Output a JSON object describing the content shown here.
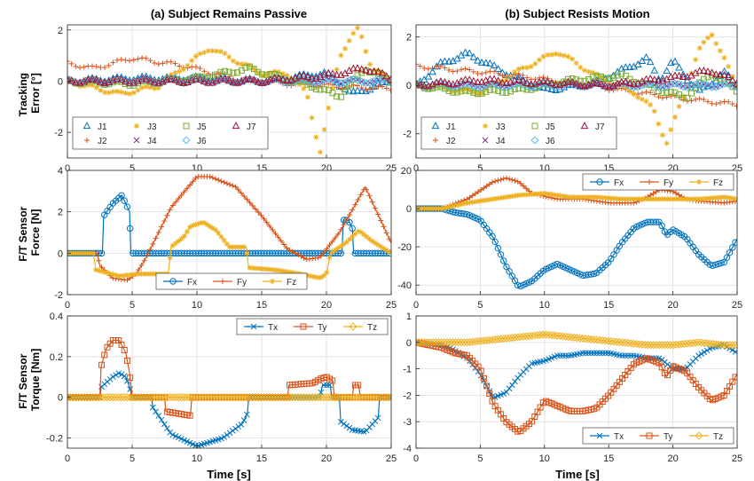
{
  "figure": {
    "col_titles": [
      "(a) Subject Remains Passive",
      "(b) Subject Resists Motion"
    ],
    "row_ylabels": [
      [
        "Tracking",
        "Error [°]"
      ],
      [
        "F/T Sensor",
        "Force [N]"
      ],
      [
        "F/T Sensor",
        "Torque [Nm]"
      ]
    ],
    "xlabel": "Time [s]"
  },
  "colors": {
    "J1": "#0072BD",
    "J2": "#D95319",
    "J3": "#EDB120",
    "J4": "#7E2F8E",
    "J5": "#77AC30",
    "J6": "#4DBEEE",
    "J7": "#A2142F",
    "Fx": "#0072BD",
    "Fy": "#D95319",
    "Fz": "#EDB120",
    "Tx": "#0072BD",
    "Ty": "#D95319",
    "Tz": "#EDB120"
  },
  "chart_data": [
    {
      "type": "scatter",
      "id": "a-err",
      "xlim": [
        0,
        25
      ],
      "ylim": [
        -3,
        2.2
      ],
      "xticks": [
        0,
        5,
        10,
        15,
        20,
        25
      ],
      "yticks": [
        -2,
        0,
        2
      ],
      "grid": true,
      "legend": "bottom-left, 4 columns",
      "series": [
        {
          "name": "J1",
          "marker": "triangle",
          "x": [
            0,
            5,
            10,
            15,
            20,
            22,
            25
          ],
          "y": [
            0,
            0.1,
            0.1,
            0,
            0.3,
            -0.5,
            0
          ]
        },
        {
          "name": "J2",
          "marker": "plus",
          "x": [
            0,
            2,
            5,
            9,
            13,
            17,
            21,
            25
          ],
          "y": [
            0.7,
            0.5,
            0.9,
            0.6,
            0.1,
            -0.1,
            -0.2,
            -0.3
          ]
        },
        {
          "name": "J3",
          "marker": "star",
          "x": [
            0,
            4,
            7,
            11,
            15,
            17,
            18.5,
            19.5,
            21,
            22.5,
            23.5,
            25
          ],
          "y": [
            0,
            -0.5,
            -0.2,
            1.3,
            0.3,
            0.3,
            -0.5,
            -2.8,
            1.0,
            2.1,
            0.5,
            0
          ]
        },
        {
          "name": "J4",
          "marker": "x",
          "x": [
            0,
            5,
            10,
            15,
            20,
            25
          ],
          "y": [
            0,
            0,
            0,
            0,
            0,
            0
          ]
        },
        {
          "name": "J5",
          "marker": "square",
          "x": [
            0,
            5,
            10,
            14,
            16,
            19,
            21,
            23,
            25
          ],
          "y": [
            0,
            -0.1,
            0.1,
            0.5,
            0.2,
            -0.2,
            -0.6,
            0.5,
            0
          ]
        },
        {
          "name": "J6",
          "marker": "diamond",
          "x": [
            0,
            5,
            10,
            15,
            20,
            25
          ],
          "y": [
            0,
            0,
            0,
            0,
            0,
            0
          ]
        },
        {
          "name": "J7",
          "marker": "triangle",
          "x": [
            0,
            5,
            10,
            15,
            20,
            23,
            25
          ],
          "y": [
            0,
            0,
            0,
            0,
            0.2,
            0.5,
            0.1
          ]
        }
      ]
    },
    {
      "type": "scatter",
      "id": "b-err",
      "xlim": [
        0,
        25
      ],
      "ylim": [
        -3,
        2.5
      ],
      "xticks": [
        0,
        5,
        10,
        15,
        20,
        25
      ],
      "yticks": [
        -2,
        0,
        2
      ],
      "grid": true,
      "legend": "bottom-left, 4 columns",
      "series": [
        {
          "name": "J1",
          "marker": "triangle",
          "x": [
            0,
            2,
            4,
            7,
            10,
            14,
            18,
            19,
            20,
            22,
            24,
            25
          ],
          "y": [
            0,
            0.9,
            1.3,
            0.5,
            -0.2,
            0.1,
            1.1,
            0.2,
            1.0,
            -0.3,
            0.5,
            0
          ]
        },
        {
          "name": "J2",
          "marker": "plus",
          "x": [
            0,
            4,
            8,
            12,
            16,
            20,
            25
          ],
          "y": [
            0.8,
            0.6,
            0.4,
            0.1,
            -0.2,
            -0.5,
            -0.8
          ]
        },
        {
          "name": "J3",
          "marker": "star",
          "x": [
            0,
            5,
            8,
            11,
            14,
            17,
            18.5,
            19.5,
            22,
            23,
            24.5,
            25
          ],
          "y": [
            0,
            -0.3,
            0.6,
            1.4,
            0.4,
            -0.3,
            -1.0,
            -2.4,
            1.4,
            2.2,
            0.5,
            0
          ]
        },
        {
          "name": "J4",
          "marker": "x",
          "x": [
            0,
            5,
            10,
            15,
            20,
            25
          ],
          "y": [
            0,
            0,
            0,
            0,
            0,
            0
          ]
        },
        {
          "name": "J5",
          "marker": "square",
          "x": [
            0,
            4,
            8,
            12,
            16,
            19,
            21,
            23,
            25
          ],
          "y": [
            0,
            -0.3,
            -0.2,
            0.2,
            0.4,
            -0.2,
            -0.5,
            0.5,
            -0.2
          ]
        },
        {
          "name": "J6",
          "marker": "diamond",
          "x": [
            0,
            5,
            10,
            15,
            20,
            25
          ],
          "y": [
            0,
            0,
            0,
            0,
            0,
            0
          ]
        },
        {
          "name": "J7",
          "marker": "triangle",
          "x": [
            0,
            5,
            10,
            15,
            20,
            23,
            25
          ],
          "y": [
            0,
            0.2,
            0.1,
            0,
            0.3,
            0.6,
            0.1
          ]
        }
      ]
    },
    {
      "type": "line",
      "id": "a-force",
      "xlim": [
        0,
        25
      ],
      "ylim": [
        -2,
        4
      ],
      "xticks": [
        0,
        5,
        10,
        15,
        20,
        25
      ],
      "yticks": [
        -2,
        0,
        2,
        4
      ],
      "grid": true,
      "legend": "bottom-center, horizontal",
      "series": [
        {
          "name": "Fx",
          "marker": "circle",
          "x": [
            0,
            2.7,
            2.8,
            3.5,
            4.2,
            4.8,
            4.9,
            5.0,
            21.2,
            21.3,
            21.7,
            22.0,
            22.1,
            25
          ],
          "y": [
            0,
            0,
            1.8,
            2.4,
            2.8,
            2.0,
            0,
            0,
            0,
            1.6,
            1.6,
            1.2,
            0,
            0
          ]
        },
        {
          "name": "Fy",
          "marker": "plus",
          "x": [
            0,
            2.3,
            2.5,
            3.5,
            4.6,
            5.3,
            6,
            8,
            10,
            11,
            13,
            15,
            17,
            18.5,
            19.5,
            21,
            23,
            25
          ],
          "y": [
            0,
            0,
            -0.6,
            -1.2,
            -1.3,
            -1.0,
            -0.3,
            2.2,
            3.7,
            3.7,
            3.2,
            1.8,
            0.2,
            -0.3,
            -0.2,
            1.0,
            3.2,
            0.5
          ]
        },
        {
          "name": "Fz",
          "marker": "star",
          "x": [
            0,
            2.0,
            2.2,
            4,
            5.5,
            7,
            7.8,
            8,
            9,
            9.5,
            10.5,
            11.5,
            12.5,
            13.8,
            14.0,
            16,
            18,
            19.5,
            20,
            20.3,
            21.5,
            22.5,
            23.5,
            25
          ],
          "y": [
            0,
            0,
            -0.8,
            -1.1,
            -1.0,
            -1.0,
            -1.0,
            0.3,
            0.8,
            1.3,
            1.5,
            1.1,
            0.3,
            0.3,
            -0.7,
            -0.8,
            -1.0,
            -1.2,
            -1.0,
            0,
            0.5,
            1.1,
            0.6,
            0
          ]
        }
      ]
    },
    {
      "type": "line",
      "id": "b-force",
      "xlim": [
        0,
        25
      ],
      "ylim": [
        -45,
        20
      ],
      "xticks": [
        0,
        5,
        10,
        15,
        20,
        25
      ],
      "yticks": [
        -40,
        -20,
        0,
        20
      ],
      "grid": true,
      "legend": "top-right, horizontal",
      "series": [
        {
          "name": "Fx",
          "marker": "circle",
          "x": [
            0,
            2,
            3,
            4,
            5,
            6,
            7,
            8,
            9,
            10,
            11,
            12,
            13,
            14,
            15,
            16,
            17,
            18,
            19,
            19.5,
            20,
            21,
            22,
            23,
            24,
            25
          ],
          "y": [
            0,
            0,
            -2,
            -3,
            -6,
            -15,
            -30,
            -41,
            -38,
            -32,
            -29,
            -32,
            -35,
            -34,
            -28,
            -18,
            -10,
            -7,
            -7,
            -14,
            -11,
            -15,
            -24,
            -30,
            -28,
            -16
          ]
        },
        {
          "name": "Fy",
          "marker": "plus",
          "x": [
            0,
            2,
            4,
            6,
            7,
            8,
            9,
            11,
            13,
            15,
            17,
            18,
            19,
            20,
            21,
            22,
            24,
            25
          ],
          "y": [
            0,
            0,
            5,
            14,
            16,
            14,
            8,
            5,
            5,
            3,
            3,
            6,
            10,
            9,
            5,
            4,
            3,
            4
          ]
        },
        {
          "name": "Fz",
          "marker": "star",
          "x": [
            0,
            2,
            4,
            6,
            8,
            10,
            12,
            14,
            16,
            18,
            20,
            22,
            24,
            25
          ],
          "y": [
            0,
            0,
            3,
            5,
            7,
            8,
            6,
            6,
            5,
            5,
            5,
            5,
            6,
            5
          ]
        }
      ]
    },
    {
      "type": "line",
      "id": "a-torque",
      "xlim": [
        0,
        25
      ],
      "ylim": [
        -0.25,
        0.4
      ],
      "xticks": [
        0,
        5,
        10,
        15,
        20,
        25
      ],
      "yticks": [
        -0.2,
        0,
        0.2,
        0.4
      ],
      "grid": true,
      "legend": "top-right, horizontal",
      "series": [
        {
          "name": "Tx",
          "marker": "x",
          "x": [
            0,
            2.5,
            2.6,
            3.5,
            4.0,
            4.5,
            4.8,
            5.0,
            6.5,
            6.6,
            8,
            10,
            12,
            13.5,
            13.9,
            14.0,
            19.5,
            19.7,
            20.3,
            20.4,
            21.0,
            21.1,
            22,
            23,
            24,
            24.1,
            25
          ],
          "y": [
            0,
            0,
            0.05,
            0.1,
            0.12,
            0.1,
            0.05,
            0,
            0,
            -0.05,
            -0.18,
            -0.24,
            -0.2,
            -0.13,
            -0.08,
            0,
            0,
            0.06,
            0.06,
            0,
            0,
            -0.12,
            -0.16,
            -0.17,
            -0.1,
            0,
            0
          ]
        },
        {
          "name": "Ty",
          "marker": "square",
          "x": [
            0,
            2.5,
            2.6,
            3.0,
            3.5,
            4.0,
            4.5,
            4.8,
            5.0,
            7.5,
            7.6,
            9.5,
            9.6,
            17.0,
            17.1,
            19.0,
            19.5,
            20.0,
            20.5,
            20.6,
            22.0,
            22.1,
            22.5,
            22.6,
            25
          ],
          "y": [
            0,
            0,
            0.15,
            0.24,
            0.28,
            0.28,
            0.22,
            0.12,
            0,
            0,
            -0.07,
            -0.09,
            0,
            0,
            0.06,
            0.07,
            0.09,
            0.1,
            0.08,
            0,
            0,
            0.06,
            0.06,
            0,
            0
          ]
        },
        {
          "name": "Tz",
          "marker": "diamond",
          "x": [
            0,
            5,
            10,
            15,
            20,
            25
          ],
          "y": [
            0,
            0,
            0,
            0,
            0,
            0
          ]
        }
      ]
    },
    {
      "type": "line",
      "id": "b-torque",
      "xlim": [
        0,
        25
      ],
      "ylim": [
        -4,
        1
      ],
      "xticks": [
        0,
        5,
        10,
        15,
        20,
        25
      ],
      "yticks": [
        -4,
        -3,
        -2,
        -1,
        0,
        1
      ],
      "grid": true,
      "legend": "bottom-right, horizontal",
      "series": [
        {
          "name": "Tx",
          "marker": "x",
          "x": [
            0,
            2,
            3,
            4,
            5,
            6,
            7,
            8,
            9,
            10,
            11,
            12,
            13,
            14,
            15,
            16,
            17,
            18,
            19,
            20,
            21,
            22,
            23,
            24,
            25
          ],
          "y": [
            0,
            -0.1,
            -0.3,
            -0.6,
            -1.2,
            -2.1,
            -1.9,
            -1.3,
            -0.8,
            -0.7,
            -0.5,
            -0.5,
            -0.4,
            -0.4,
            -0.4,
            -0.5,
            -0.5,
            -0.6,
            -0.6,
            -1.0,
            -1.0,
            -0.5,
            -0.2,
            -0.1,
            -0.4
          ]
        },
        {
          "name": "Ty",
          "marker": "square",
          "x": [
            0,
            2,
            3,
            4,
            5,
            6,
            7,
            8,
            9,
            10,
            11,
            12,
            13,
            14,
            15,
            16,
            17,
            18,
            19,
            19.5,
            20,
            21,
            22,
            23,
            24,
            25
          ],
          "y": [
            0,
            -0.2,
            -0.4,
            -0.5,
            -1.0,
            -2.3,
            -3.0,
            -3.4,
            -3.0,
            -2.2,
            -2.4,
            -2.6,
            -2.6,
            -2.5,
            -2.0,
            -1.4,
            -0.8,
            -0.6,
            -0.8,
            -1.3,
            -0.9,
            -1.1,
            -1.7,
            -2.2,
            -2.0,
            -1.2
          ]
        },
        {
          "name": "Tz",
          "marker": "diamond",
          "x": [
            0,
            2,
            4,
            6,
            8,
            10,
            12,
            14,
            16,
            18,
            20,
            22,
            24,
            25
          ],
          "y": [
            0,
            0,
            0,
            0.1,
            0.2,
            0.3,
            0.2,
            0.1,
            0,
            -0.1,
            -0.1,
            0,
            -0.1,
            -0.1
          ]
        }
      ]
    }
  ]
}
